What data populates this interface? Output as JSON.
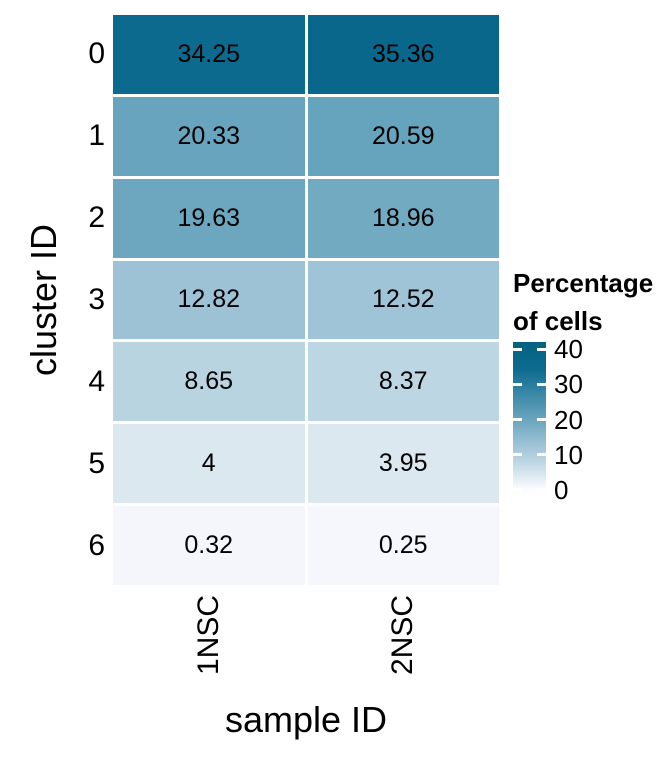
{
  "figure": {
    "background": "#ffffff",
    "text_color": "#000000"
  },
  "chart_data": {
    "type": "heatmap",
    "title": "",
    "xlabel": "sample ID",
    "ylabel": "cluster ID",
    "columns": [
      "1NSC",
      "2NSC"
    ],
    "rows": [
      "0",
      "1",
      "2",
      "3",
      "4",
      "5",
      "6"
    ],
    "values": [
      [
        34.25,
        35.36
      ],
      [
        20.33,
        20.59
      ],
      [
        19.63,
        18.96
      ],
      [
        12.82,
        12.52
      ],
      [
        8.65,
        8.37
      ],
      [
        4,
        3.95
      ],
      [
        0.32,
        0.25
      ]
    ],
    "cell_labels": [
      [
        "34.25",
        "35.36"
      ],
      [
        "20.33",
        "20.59"
      ],
      [
        "19.63",
        "18.96"
      ],
      [
        "12.82",
        "12.52"
      ],
      [
        "8.65",
        "8.37"
      ],
      [
        "4",
        "3.95"
      ],
      [
        "0.32",
        "0.25"
      ]
    ],
    "cell_colors": [
      [
        "#0b6a8e",
        "#08678b"
      ],
      [
        "#68a4bd",
        "#66a3bc"
      ],
      [
        "#6ca7bf",
        "#71aac1"
      ],
      [
        "#9dc2d6",
        "#9fc4d7"
      ],
      [
        "#b9d4e1",
        "#bcd6e3"
      ],
      [
        "#dbe8f0",
        "#dce8f0"
      ],
      [
        "#f5f6fc",
        "#f6f7fd"
      ]
    ],
    "grid": false,
    "legend": {
      "position": "right",
      "title_line1": "Percentage",
      "title_line2": "of cells",
      "tick_labels": [
        "40",
        "30",
        "20",
        "10",
        "0"
      ],
      "tick_values": [
        40,
        30,
        20,
        10,
        0
      ],
      "bar_value_top": 42,
      "bar_value_bottom": -2,
      "gradient_stops": [
        {
          "pos": 0,
          "color": "#05617f"
        },
        {
          "pos": 17,
          "color": "#0b6a8e"
        },
        {
          "pos": 50,
          "color": "#6aa5be"
        },
        {
          "pos": 66,
          "color": "#9dc2d6"
        },
        {
          "pos": 76,
          "color": "#b9d4e1"
        },
        {
          "pos": 86,
          "color": "#dbe8f0"
        },
        {
          "pos": 95,
          "color": "#fbfcff"
        },
        {
          "pos": 100,
          "color": "#ffffff"
        }
      ]
    },
    "colorscale": {
      "low": "#ffffff",
      "high": "#05617f",
      "range": [
        0,
        40
      ]
    }
  }
}
